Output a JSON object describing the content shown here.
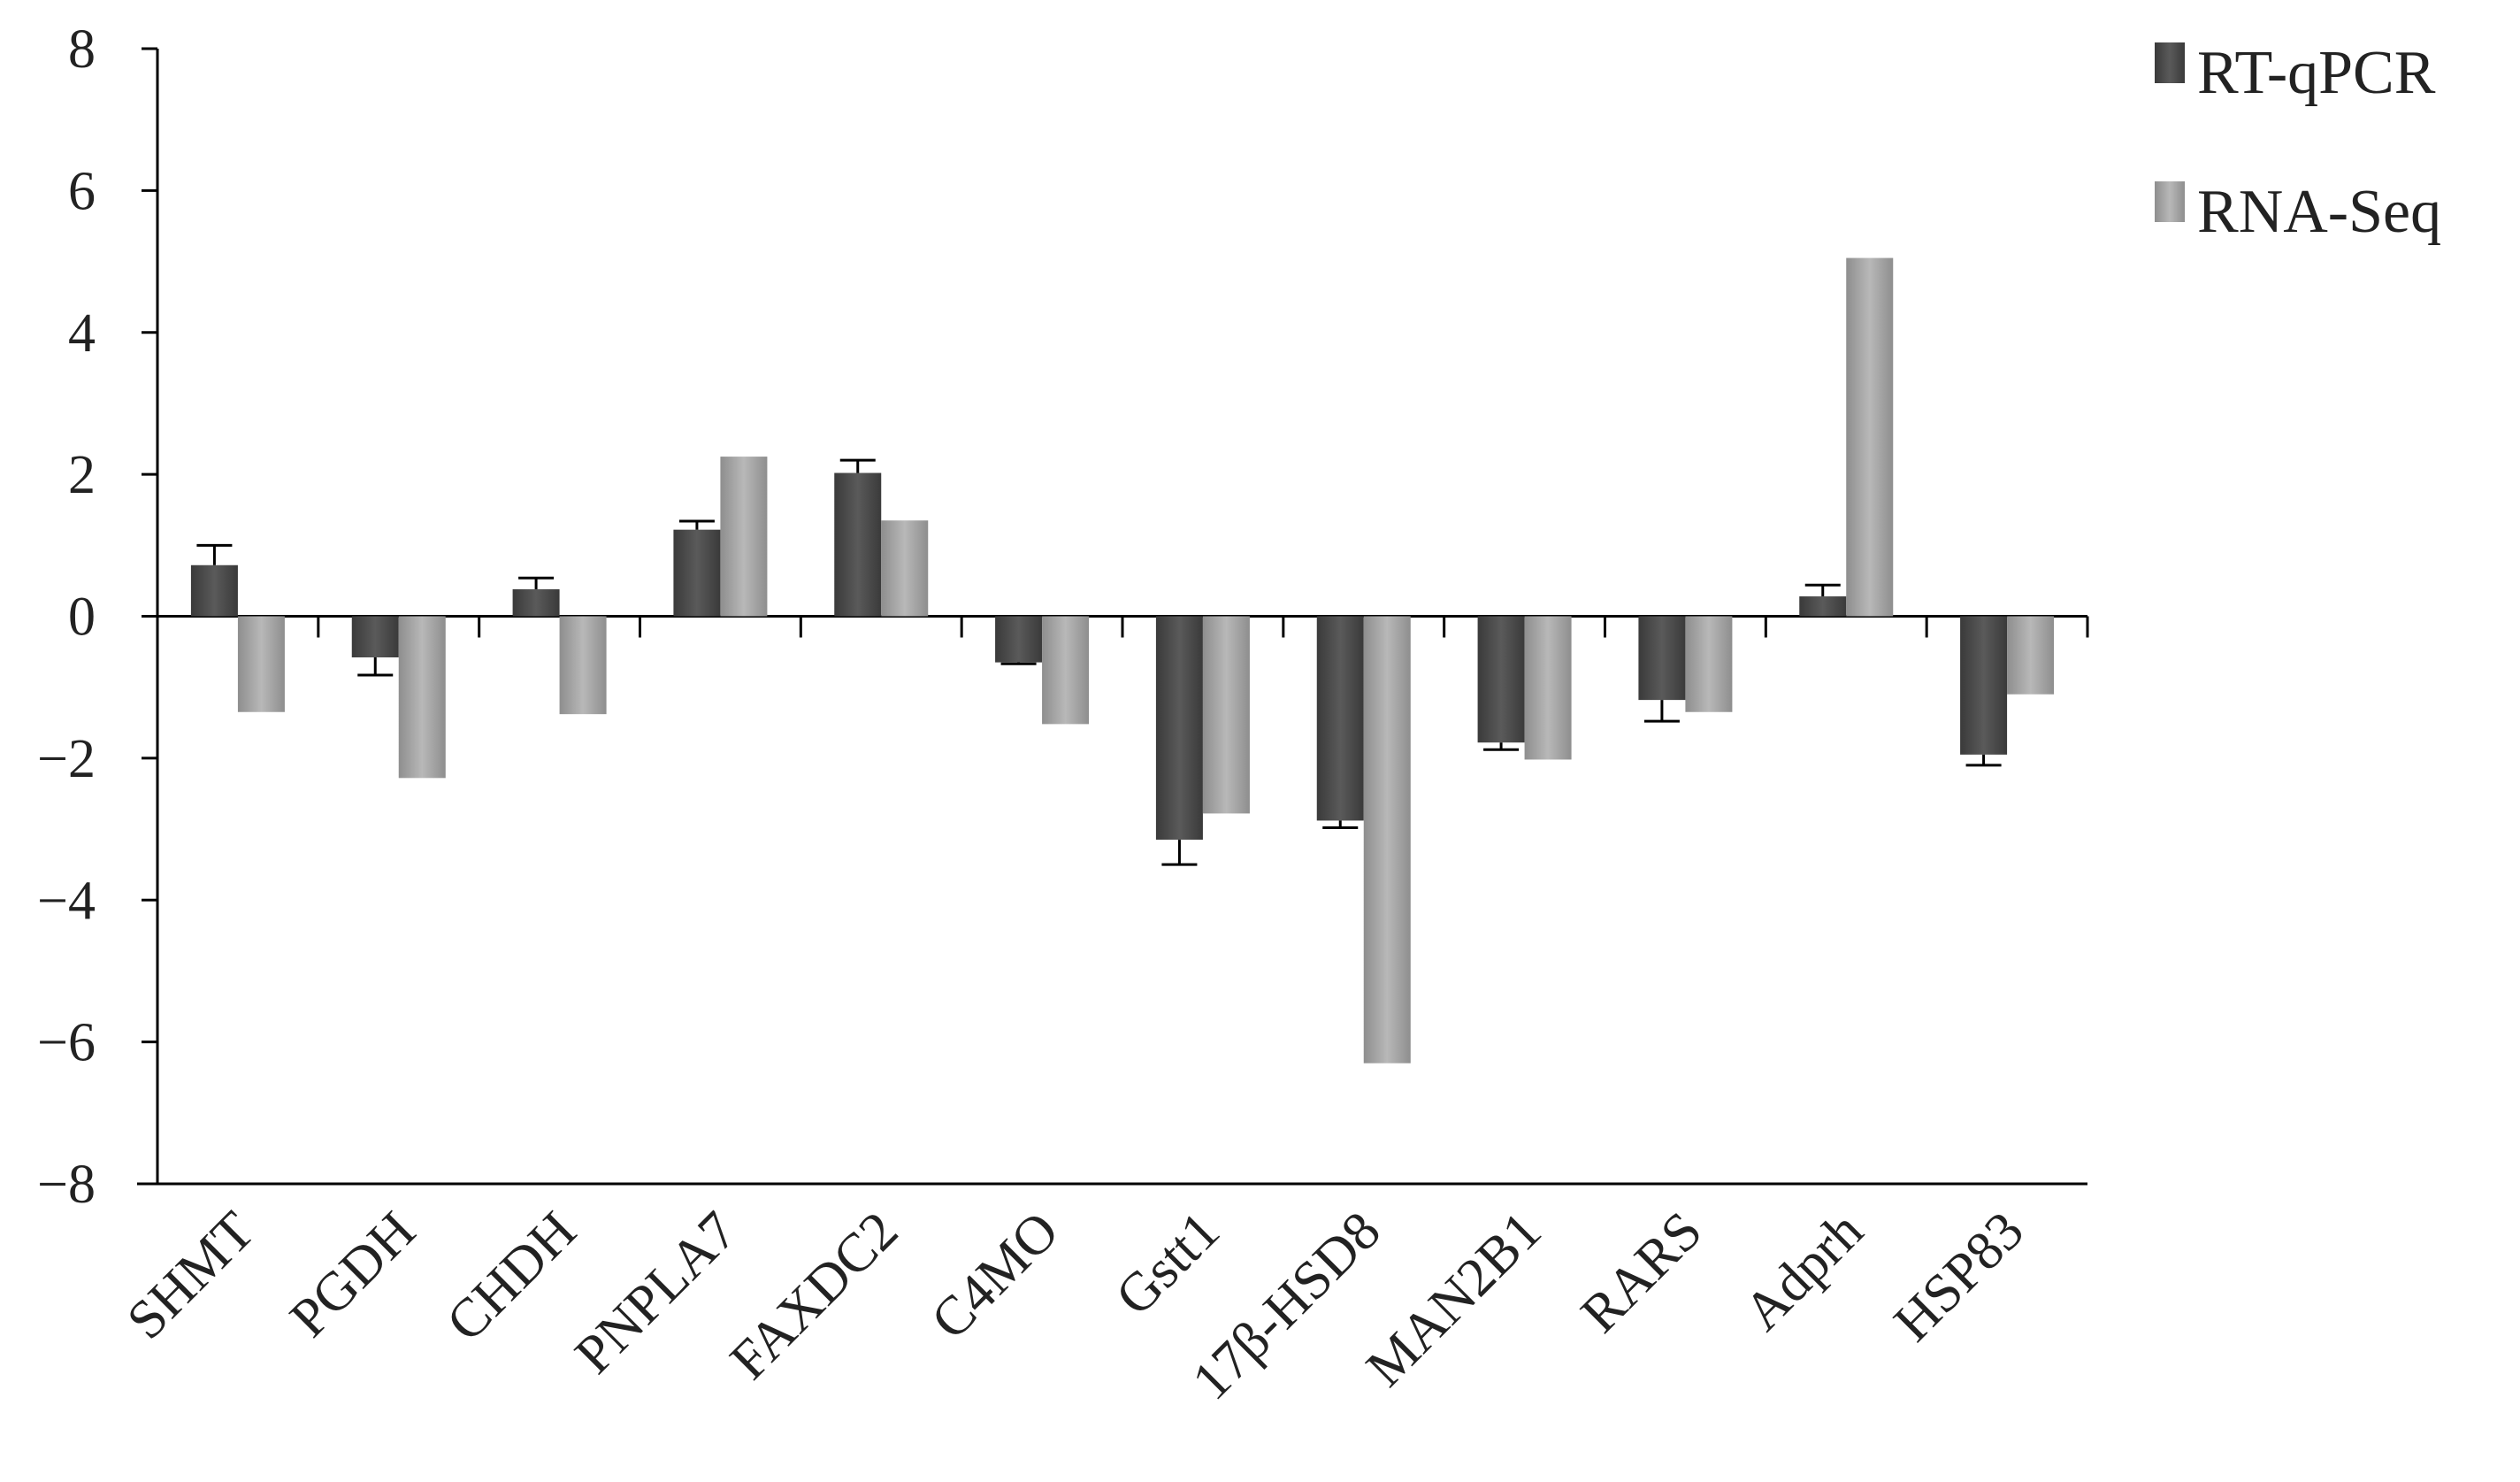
{
  "chart_data": {
    "type": "bar",
    "categories": [
      "SHMT",
      "PGDH",
      "CHDH",
      "PNPLA7",
      "FAXDC2",
      "C4MO",
      "Gstt1",
      "17β-HSD8",
      "MAN2B1",
      "RARS",
      "Adprh",
      "HSP83"
    ],
    "series": [
      {
        "name": "RT-qPCR",
        "color": "#4a4a4a",
        "values": [
          0.72,
          -0.58,
          0.38,
          1.22,
          2.02,
          -0.65,
          -3.15,
          -2.88,
          -1.78,
          -1.18,
          0.28,
          -1.95
        ],
        "error": [
          0.28,
          0.25,
          0.16,
          0.12,
          0.18,
          0.02,
          0.35,
          0.1,
          0.1,
          0.3,
          0.16,
          0.15
        ]
      },
      {
        "name": "RNA-Seq",
        "color": "#a6a6a6",
        "values": [
          -1.35,
          -2.28,
          -1.38,
          2.25,
          1.35,
          -1.52,
          -2.78,
          -6.3,
          -2.02,
          -1.35,
          5.05,
          -1.1
        ],
        "error": null
      }
    ],
    "ylim": [
      -8,
      8
    ],
    "yticks": [
      "8",
      "6",
      "4",
      "2",
      "0",
      "−2",
      "−4",
      "−6",
      "−8"
    ],
    "ytick_values": [
      8,
      6,
      4,
      2,
      0,
      -2,
      -4,
      -6,
      -8
    ],
    "grid": false,
    "legend": "top-right",
    "title": "",
    "xlabel": "",
    "ylabel": ""
  }
}
